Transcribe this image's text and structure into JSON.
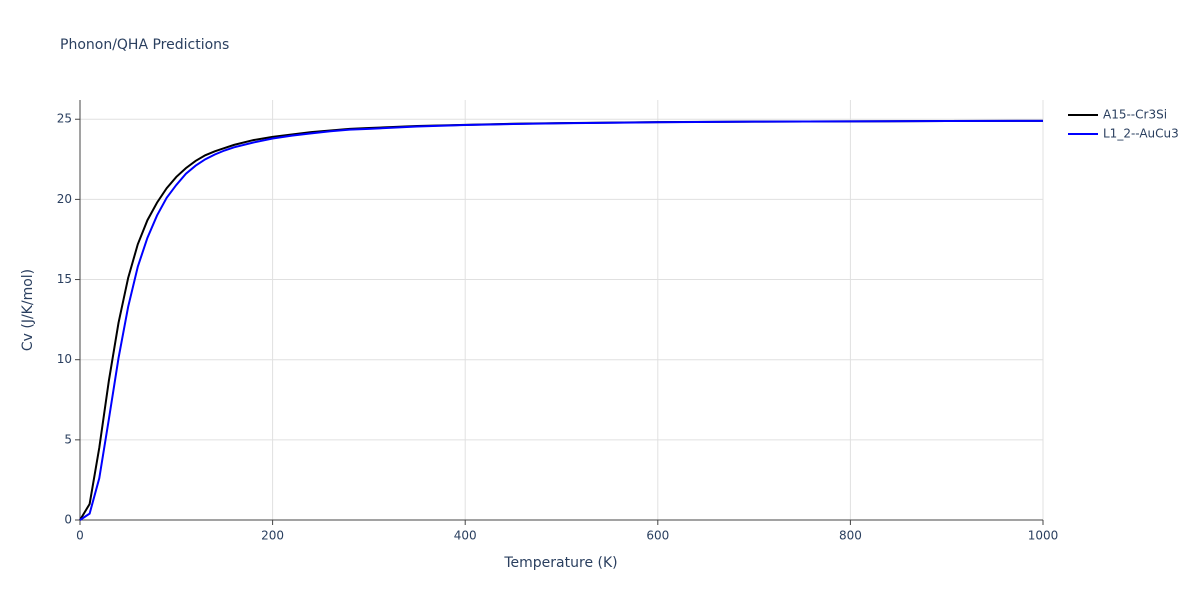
{
  "chart_data": {
    "type": "line",
    "title": "Phonon/QHA Predictions",
    "x_label": "Temperature (K)",
    "y_label": "Cv (J/K/mol)",
    "x": [
      0,
      10,
      20,
      30,
      40,
      50,
      60,
      70,
      80,
      90,
      100,
      110,
      120,
      130,
      140,
      150,
      160,
      180,
      200,
      220,
      240,
      260,
      280,
      300,
      350,
      400,
      450,
      500,
      600,
      700,
      800,
      900,
      1000
    ],
    "series": [
      {
        "name": "A15--Cr3Si",
        "color": "#000000",
        "values": [
          0,
          1.0,
          4.5,
          8.7,
          12.3,
          15.1,
          17.2,
          18.7,
          19.8,
          20.7,
          21.4,
          21.95,
          22.4,
          22.75,
          23.0,
          23.2,
          23.4,
          23.7,
          23.9,
          24.05,
          24.2,
          24.3,
          24.4,
          24.45,
          24.58,
          24.65,
          24.72,
          24.76,
          24.82,
          24.85,
          24.87,
          24.89,
          24.9
        ]
      },
      {
        "name": "L1_2--AuCu3",
        "color": "#0000ff",
        "values": [
          0,
          0.4,
          2.6,
          6.3,
          10.1,
          13.3,
          15.8,
          17.6,
          19.0,
          20.1,
          20.9,
          21.6,
          22.1,
          22.5,
          22.8,
          23.05,
          23.25,
          23.55,
          23.8,
          23.98,
          24.12,
          24.25,
          24.35,
          24.4,
          24.55,
          24.64,
          24.7,
          24.75,
          24.81,
          24.85,
          24.87,
          24.89,
          24.9
        ]
      }
    ],
    "xlim": [
      0,
      1000
    ],
    "xticks": [
      0,
      200,
      400,
      600,
      800,
      1000
    ],
    "ylim": [
      0,
      26.2
    ],
    "yticks": [
      0,
      5,
      10,
      15,
      20,
      25
    ],
    "grid": true,
    "legend": "right"
  }
}
